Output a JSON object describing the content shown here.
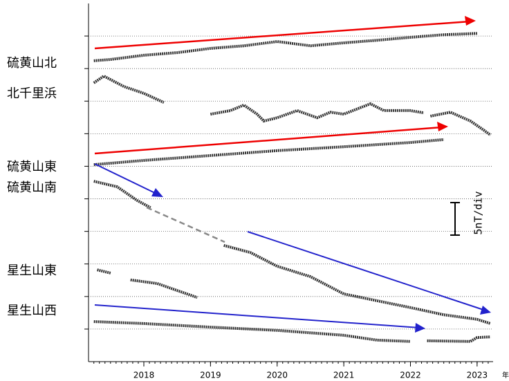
{
  "chart_data": {
    "type": "line",
    "y_unit_label": "5nT/div",
    "x_unit_label": "年",
    "xlim": [
      2017.17,
      2023.24
    ],
    "xticks": [
      2018,
      2019,
      2020,
      2021,
      2022,
      2023
    ],
    "minor_ticks_per_year": 12,
    "ylim": [
      0,
      11
    ],
    "grid_y": [
      1,
      2,
      3,
      4,
      5,
      6,
      7,
      8,
      9,
      10
    ],
    "color": "#333333",
    "series": [
      {
        "name": "硫黄山北",
        "x": [
          2017.25,
          2017.5,
          2018,
          2018.5,
          2019,
          2019.5,
          2020,
          2020.5,
          2021,
          2021.5,
          2022,
          2022.5,
          2023
        ],
        "values": [
          9.24,
          9.28,
          9.41,
          9.49,
          9.62,
          9.7,
          9.83,
          9.7,
          9.79,
          9.87,
          9.96,
          10.04,
          10.08
        ]
      },
      {
        "name": "北千里浜",
        "x": [
          2017.25,
          2017.4,
          2017.7,
          2018,
          2018.3,
          2018.6,
          2019,
          2019.3,
          2019.5,
          2019.7,
          2019.8,
          2020,
          2020.3,
          2020.6,
          2020.8,
          2021,
          2021.4,
          2021.6,
          2022,
          2022.2,
          2022.25,
          2022.3,
          2022.6,
          2022.9,
          2023.1,
          2023.2
        ],
        "values": [
          8.56,
          8.77,
          8.45,
          8.24,
          7.96,
          null,
          7.6,
          7.71,
          7.88,
          7.6,
          7.39,
          7.49,
          7.71,
          7.49,
          7.66,
          7.6,
          7.92,
          7.71,
          7.71,
          7.64,
          null,
          7.54,
          7.66,
          7.39,
          7.11,
          6.96
        ]
      },
      {
        "name": "硫黄山東",
        "x": [
          2017.25,
          2018,
          2019,
          2020,
          2021,
          2022,
          2022.5
        ],
        "values": [
          6.05,
          6.18,
          6.33,
          6.48,
          6.6,
          6.73,
          6.82
        ]
      },
      {
        "name": "硫黄山南",
        "x": [
          2017.25,
          2017.6,
          2017.9,
          2018.1,
          2018.6,
          2019.2,
          2019.6,
          2020,
          2020.5,
          2021,
          2021.5,
          2022,
          2022.5,
          2023,
          2023.2
        ],
        "values": [
          5.54,
          5.37,
          4.95,
          4.73,
          null,
          3.57,
          3.35,
          2.93,
          2.61,
          2.08,
          1.87,
          1.66,
          1.44,
          1.3,
          1.17
        ]
      },
      {
        "name": "星生山東",
        "x": [
          2017.3,
          2017.5,
          2017.65,
          2017.8,
          2018.2,
          2018.8
        ],
        "values": [
          2.82,
          2.72,
          null,
          2.51,
          2.4,
          1.97
        ]
      },
      {
        "name": "星生山西",
        "x": [
          2017.25,
          2018,
          2019,
          2020,
          2021,
          2021.5,
          2022,
          2022.1,
          2022.25,
          2022.9,
          2023,
          2023.2
        ],
        "values": [
          1.23,
          1.17,
          1.06,
          0.96,
          0.81,
          0.66,
          0.62,
          null,
          0.64,
          0.62,
          0.74,
          0.76
        ]
      }
    ]
  }
}
